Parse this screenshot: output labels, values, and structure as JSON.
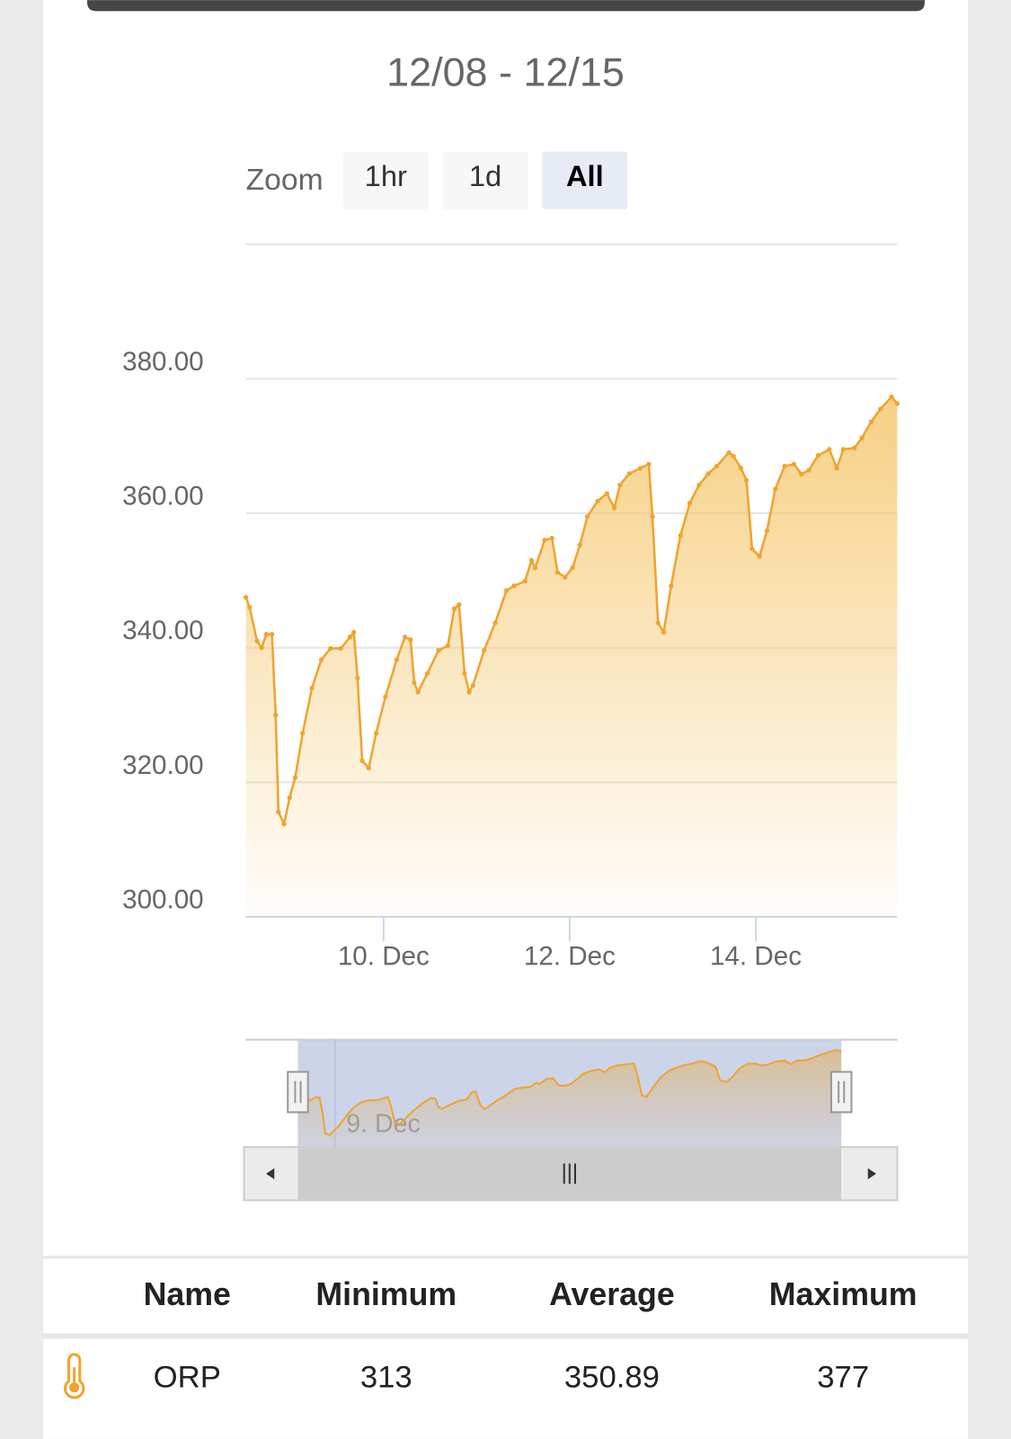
{
  "header": {
    "title": "12/08 - 12/15"
  },
  "zoom": {
    "label": "Zoom",
    "buttons": [
      "1hr",
      "1d",
      "All"
    ],
    "active": 2
  },
  "chart_data": {
    "type": "area",
    "color": "#f0a42f",
    "grid": true,
    "x": [
      8.52,
      8.56,
      8.64,
      8.69,
      8.74,
      8.8,
      8.84,
      8.87,
      8.93,
      8.99,
      9.05,
      9.13,
      9.23,
      9.33,
      9.43,
      9.54,
      9.64,
      9.68,
      9.72,
      9.77,
      9.84,
      9.92,
      10.02,
      10.14,
      10.23,
      10.29,
      10.33,
      10.37,
      10.47,
      10.59,
      10.69,
      10.76,
      10.81,
      10.87,
      10.92,
      10.96,
      11.08,
      11.2,
      11.32,
      11.4,
      11.52,
      11.59,
      11.63,
      11.73,
      11.81,
      11.87,
      11.95,
      12.03,
      12.11,
      12.19,
      12.3,
      12.4,
      12.48,
      12.54,
      12.64,
      12.76,
      12.85,
      12.89,
      12.95,
      13.01,
      13.09,
      13.19,
      13.29,
      13.39,
      13.49,
      13.58,
      13.71,
      13.76,
      13.84,
      13.9,
      13.96,
      14.04,
      14.12,
      14.21,
      14.31,
      14.41,
      14.49,
      14.57,
      14.67,
      14.79,
      14.87,
      14.94,
      15.06,
      15.14,
      15.24,
      15.34,
      15.46,
      15.52
    ],
    "values": [
      347.5,
      346,
      341,
      340,
      342,
      342,
      330,
      315.6,
      313.8,
      317.7,
      320.7,
      327.3,
      334,
      338.2,
      339.9,
      339.9,
      341.6,
      342.3,
      335.5,
      323.2,
      322.1,
      327.3,
      332.7,
      338.2,
      341.6,
      341.2,
      334.8,
      333.4,
      336.2,
      339.6,
      340.3,
      345.8,
      346.4,
      336.2,
      333.4,
      334.4,
      339.6,
      343.7,
      348.5,
      349.2,
      349.9,
      353,
      351.9,
      356,
      356.3,
      351.2,
      350.5,
      351.9,
      355.3,
      359.5,
      361.8,
      362.9,
      360.8,
      364.2,
      365.9,
      366.7,
      367.3,
      359.5,
      343.7,
      342.3,
      349.2,
      356.7,
      361.5,
      364.2,
      365.9,
      367,
      369,
      368.5,
      366.7,
      364.9,
      354.7,
      353.6,
      357.4,
      363.6,
      367,
      367.3,
      365.8,
      366.4,
      368.6,
      369.5,
      366.7,
      369.5,
      369.7,
      371.2,
      373.6,
      375.5,
      377.3,
      376.3
    ],
    "xlim": [
      8.52,
      15.52
    ],
    "xticks": [
      {
        "value": 10,
        "label": "10. Dec"
      },
      {
        "value": 12,
        "label": "12. Dec"
      },
      {
        "value": 14,
        "label": "14. Dec"
      }
    ],
    "ylim": [
      300,
      400
    ],
    "yticks": [
      {
        "value": 300,
        "label": "300.00"
      },
      {
        "value": 320,
        "label": "320.00"
      },
      {
        "value": 340,
        "label": "340.00"
      },
      {
        "value": 360,
        "label": "360.00"
      },
      {
        "value": 380,
        "label": "380.00"
      }
    ]
  },
  "navigator": {
    "xlim": [
      7.85,
      16.24
    ],
    "ylim": [
      305,
      385
    ],
    "selection": [
      8.52,
      15.52
    ],
    "xticks": [
      {
        "value": 9,
        "label": "9. Dec"
      }
    ]
  },
  "table": {
    "header": [
      "Name",
      "Minimum",
      "Average",
      "Maximum"
    ],
    "rows": [
      [
        "ORP",
        313,
        350.89,
        377
      ]
    ]
  }
}
